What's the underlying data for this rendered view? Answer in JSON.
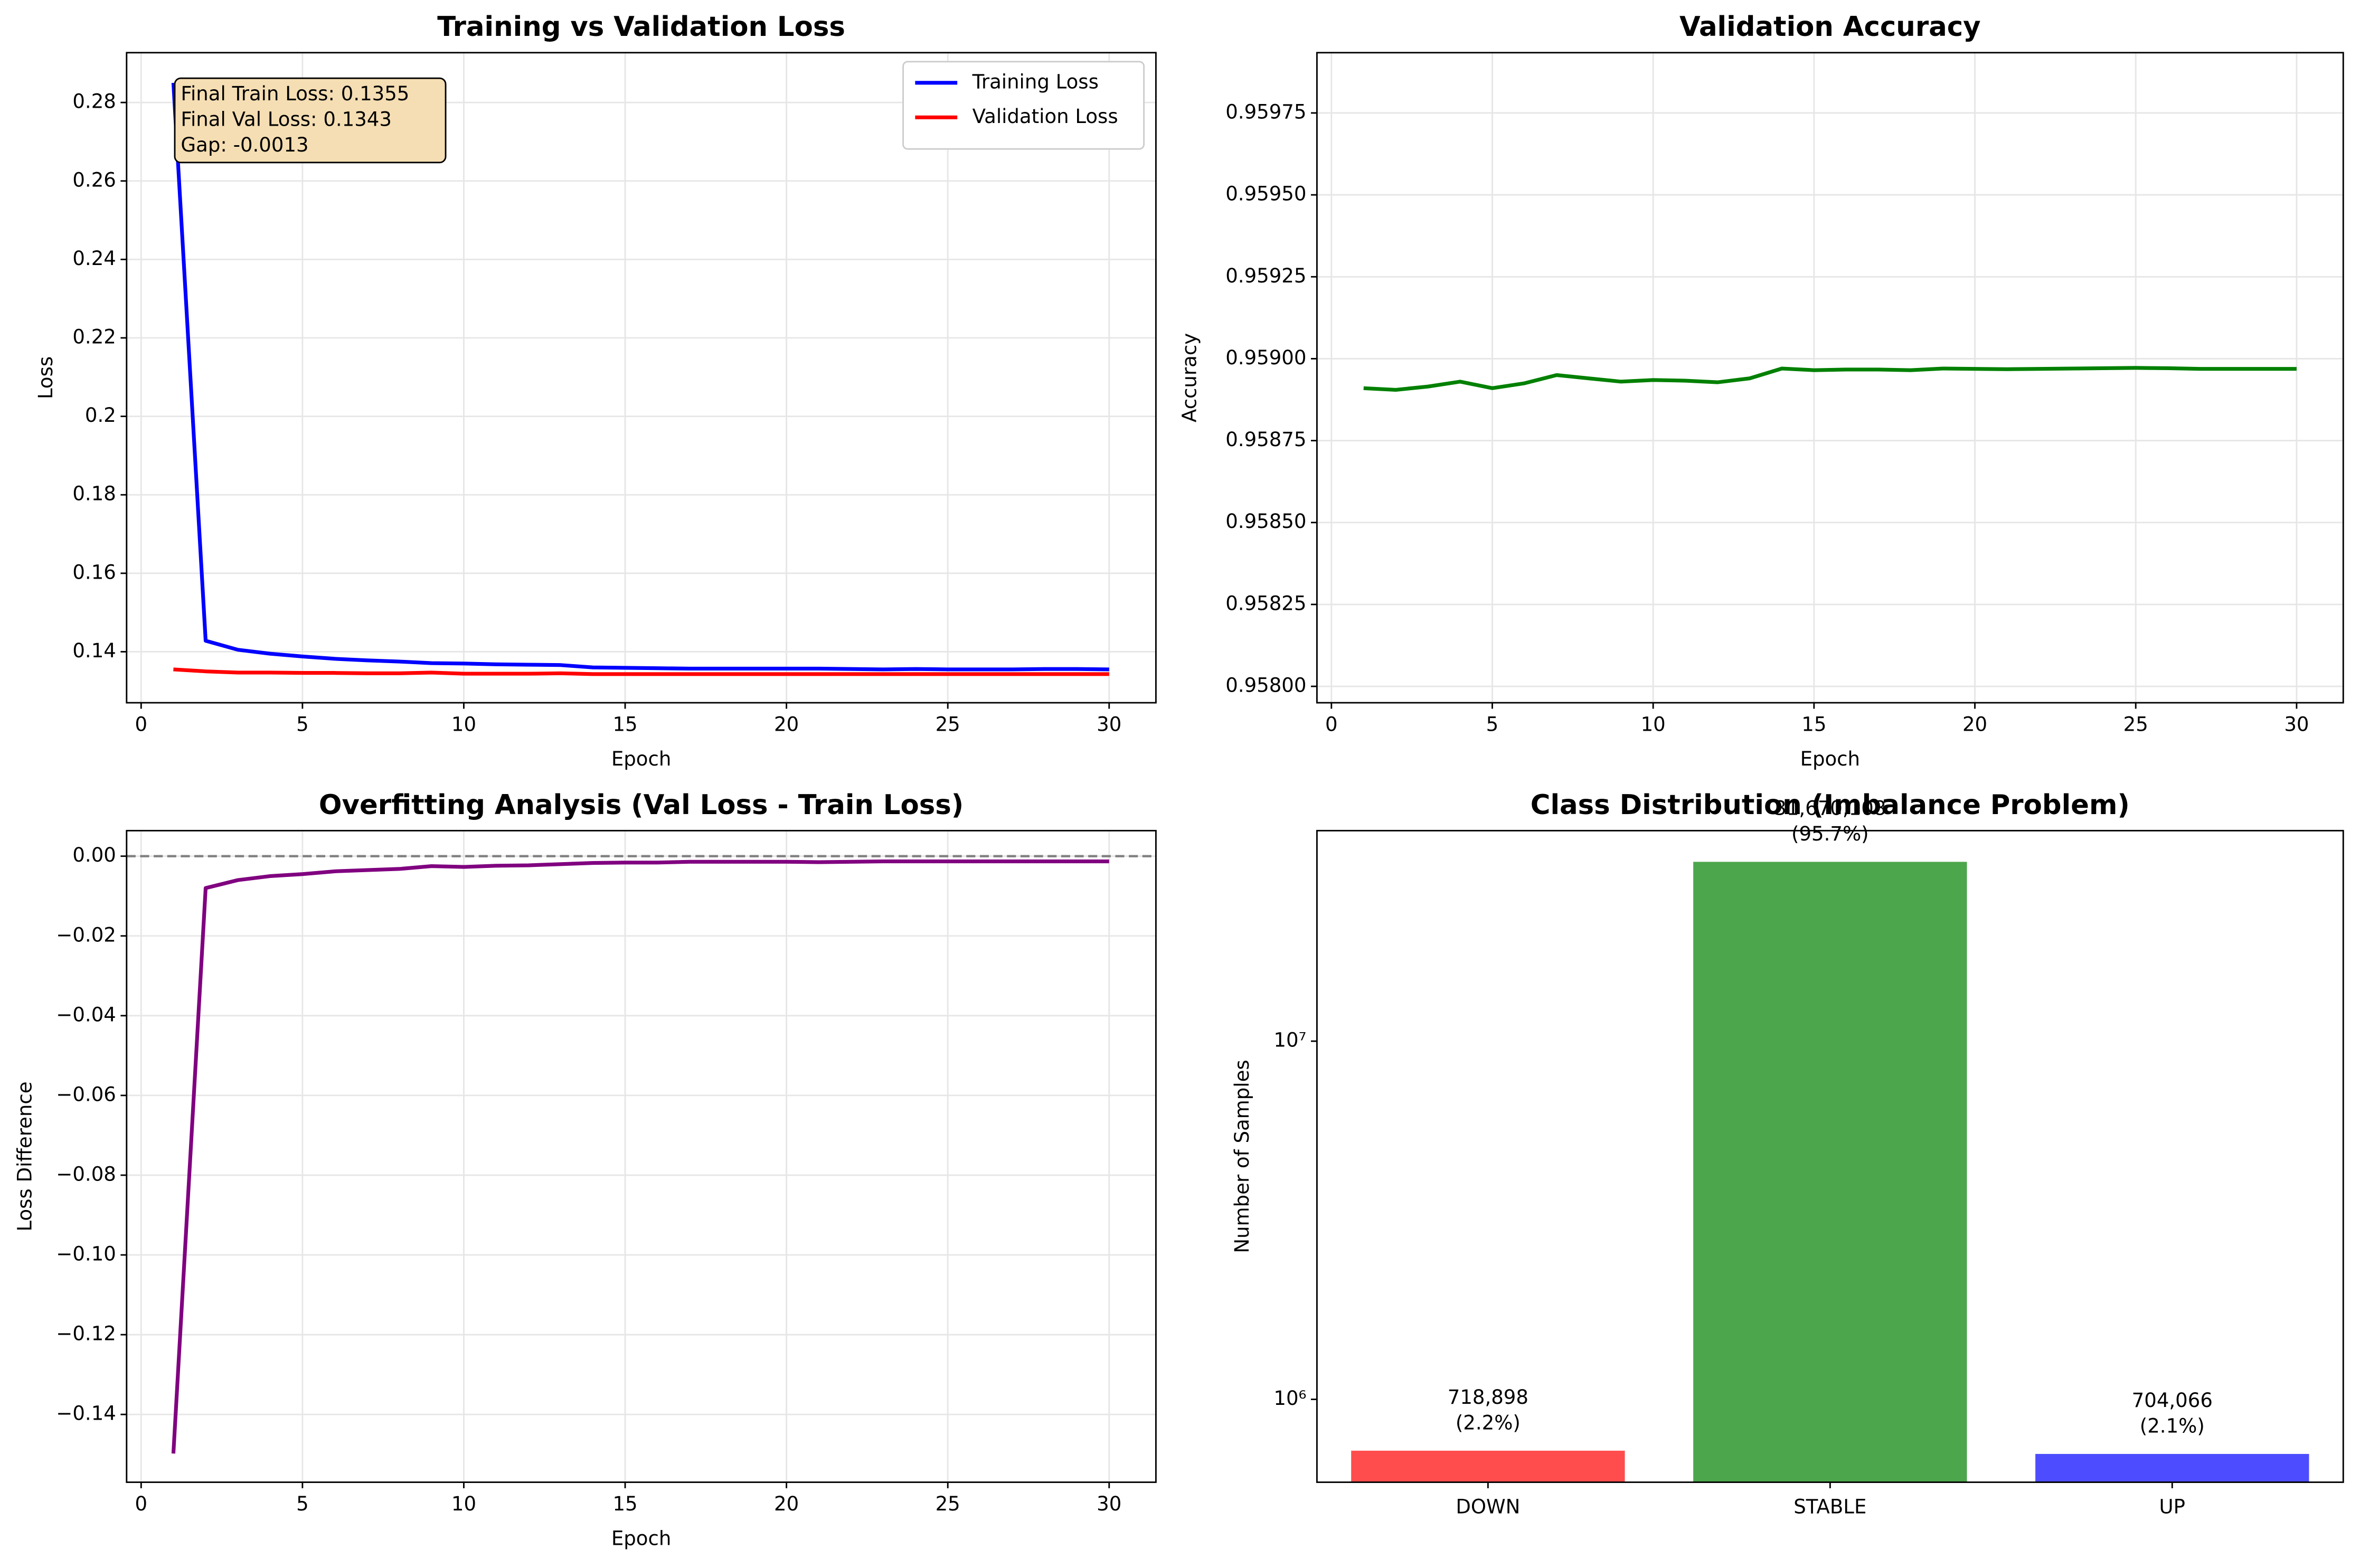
{
  "chart_data": [
    {
      "type": "line",
      "title": "Training vs Validation Loss",
      "xlabel": "Epoch",
      "ylabel": "Loss",
      "x": [
        1,
        2,
        3,
        4,
        5,
        6,
        7,
        8,
        9,
        10,
        11,
        12,
        13,
        14,
        15,
        16,
        17,
        18,
        19,
        20,
        21,
        22,
        23,
        24,
        25,
        26,
        27,
        28,
        29,
        30
      ],
      "series": [
        {
          "name": "Training Loss",
          "color": "#0000ff",
          "values": [
            0.285,
            0.1428,
            0.1405,
            0.1395,
            0.1388,
            0.1382,
            0.1378,
            0.1375,
            0.1371,
            0.137,
            0.1368,
            0.1367,
            0.1366,
            0.136,
            0.1359,
            0.1358,
            0.1357,
            0.1357,
            0.1357,
            0.1357,
            0.1357,
            0.1356,
            0.1355,
            0.1356,
            0.1355,
            0.1355,
            0.1355,
            0.1356,
            0.1356,
            0.1355
          ]
        },
        {
          "name": "Validation Loss",
          "color": "#ff0000",
          "values": [
            0.1355,
            0.135,
            0.1347,
            0.1347,
            0.1346,
            0.1346,
            0.1345,
            0.1345,
            0.1347,
            0.1344,
            0.1344,
            0.1344,
            0.1345,
            0.1343,
            0.1343,
            0.1343,
            0.1343,
            0.1343,
            0.1343,
            0.1343,
            0.1343,
            0.1343,
            0.1343,
            0.1343,
            0.1343,
            0.1343,
            0.1343,
            0.1343,
            0.1343,
            0.1343
          ]
        }
      ],
      "xlim": [
        -0.45,
        31.45
      ],
      "xticks": [
        0,
        5,
        10,
        15,
        20,
        25,
        30
      ],
      "ylim": [
        0.127,
        0.2927
      ],
      "yticks": [
        0.14,
        0.16,
        0.18,
        0.2,
        0.22,
        0.24,
        0.26,
        0.28
      ],
      "grid": true,
      "legend": "upper right",
      "annotation": [
        "Final Train Loss: 0.1355",
        "Final Val Loss: 0.1343",
        "Gap: -0.0013"
      ]
    },
    {
      "type": "line",
      "title": "Validation Accuracy",
      "xlabel": "Epoch",
      "ylabel": "Accuracy",
      "x": [
        1,
        2,
        3,
        4,
        5,
        6,
        7,
        8,
        9,
        10,
        11,
        12,
        13,
        14,
        15,
        16,
        17,
        18,
        19,
        20,
        21,
        22,
        23,
        24,
        25,
        26,
        27,
        28,
        29,
        30
      ],
      "values": [
        0.95891,
        0.958905,
        0.958915,
        0.95893,
        0.95891,
        0.958925,
        0.95895,
        0.95894,
        0.95893,
        0.958935,
        0.958933,
        0.958928,
        0.95894,
        0.95897,
        0.958965,
        0.958967,
        0.958967,
        0.958965,
        0.95897,
        0.958969,
        0.958968,
        0.958969,
        0.95897,
        0.958971,
        0.958972,
        0.958971,
        0.958969,
        0.958969,
        0.958969,
        0.958969
      ],
      "color": "#008000",
      "xlim": [
        -0.45,
        31.45
      ],
      "xticks": [
        0,
        5,
        10,
        15,
        20,
        25,
        30
      ],
      "ylim": [
        0.95795,
        0.959934
      ],
      "yticks": [
        {
          "value": 0.958,
          "label": "0.95800"
        },
        {
          "value": 0.95825,
          "label": "0.95825"
        },
        {
          "value": 0.9585,
          "label": "0.95850"
        },
        {
          "value": 0.95875,
          "label": "0.95875"
        },
        {
          "value": 0.959,
          "label": "0.95900"
        },
        {
          "value": 0.95925,
          "label": "0.95925"
        },
        {
          "value": 0.9595,
          "label": "0.95950"
        },
        {
          "value": 0.95975,
          "label": "0.95975"
        }
      ],
      "grid": true
    },
    {
      "type": "line",
      "title": "Overfitting Analysis (Val Loss - Train Loss)",
      "xlabel": "Epoch",
      "ylabel": "Loss Difference",
      "x": [
        1,
        2,
        3,
        4,
        5,
        6,
        7,
        8,
        9,
        10,
        11,
        12,
        13,
        14,
        15,
        16,
        17,
        18,
        19,
        20,
        21,
        22,
        23,
        24,
        25,
        26,
        27,
        28,
        29,
        30
      ],
      "values": [
        -0.1498,
        -0.008,
        -0.006,
        -0.005,
        -0.0045,
        -0.0038,
        -0.0035,
        -0.0032,
        -0.0025,
        -0.0027,
        -0.0024,
        -0.0023,
        -0.002,
        -0.0017,
        -0.0016,
        -0.0016,
        -0.0014,
        -0.0014,
        -0.0014,
        -0.0014,
        -0.0015,
        -0.0014,
        -0.0013,
        -0.0013,
        -0.0013,
        -0.0013,
        -0.0013,
        -0.0013,
        -0.0013,
        -0.0013
      ],
      "color": "#800080",
      "reference_line": 0,
      "xlim": [
        -0.45,
        31.45
      ],
      "xticks": [
        0,
        5,
        10,
        15,
        20,
        25,
        30
      ],
      "ylim": [
        -0.157,
        0.0064
      ],
      "yticks": [
        {
          "value": -0.14,
          "label": "−0.14"
        },
        {
          "value": -0.12,
          "label": "−0.12"
        },
        {
          "value": -0.1,
          "label": "−0.10"
        },
        {
          "value": -0.08,
          "label": "−0.08"
        },
        {
          "value": -0.06,
          "label": "−0.06"
        },
        {
          "value": -0.04,
          "label": "−0.04"
        },
        {
          "value": -0.02,
          "label": "−0.02"
        },
        {
          "value": 0,
          "label": "0.00"
        }
      ],
      "grid": true
    },
    {
      "type": "bar",
      "title": "Class Distribution (Imbalance Problem)",
      "ylabel": "Number of Samples",
      "categories": [
        "DOWN",
        "STABLE",
        "UP"
      ],
      "values": [
        718898,
        31670108,
        704066
      ],
      "value_labels": [
        "718,898\n(2.2%)",
        "31,670,108\n(95.7%)",
        "704,066\n(2.1%)"
      ],
      "colors": [
        "#ff4d4d",
        "#4ca64c",
        "#4d4dff"
      ],
      "log_scale": true,
      "ylim": [
        587000,
        38700000
      ],
      "yticks": [
        {
          "value": 1000000,
          "label": "10⁶"
        },
        {
          "value": 10000000,
          "label": "10⁷"
        }
      ],
      "grid": false
    }
  ]
}
